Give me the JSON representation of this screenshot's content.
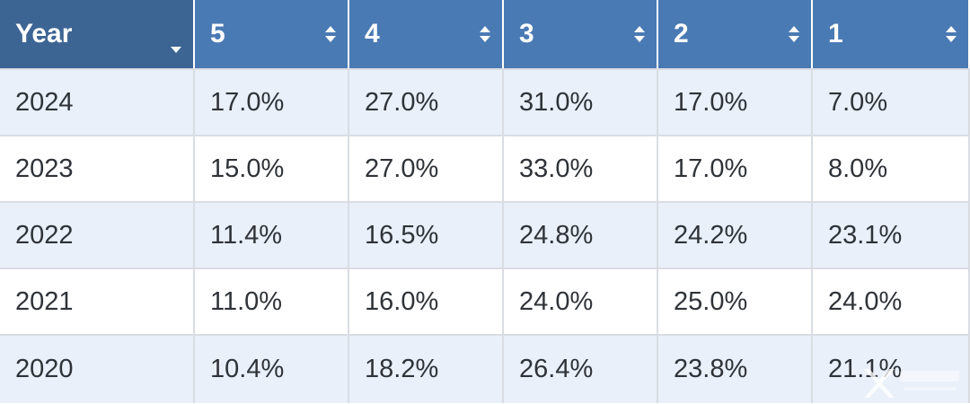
{
  "header": {
    "columns": [
      {
        "label": "Year",
        "control": "dropdown-icon"
      },
      {
        "label": "5",
        "control": "sort-icon"
      },
      {
        "label": "4",
        "control": "sort-icon"
      },
      {
        "label": "3",
        "control": "sort-icon"
      },
      {
        "label": "2",
        "control": "sort-icon"
      },
      {
        "label": "1",
        "control": "sort-icon"
      }
    ]
  },
  "rows": [
    {
      "year": "2024",
      "values": [
        "17.0%",
        "27.0%",
        "31.0%",
        "17.0%",
        "7.0%"
      ]
    },
    {
      "year": "2023",
      "values": [
        "15.0%",
        "27.0%",
        "33.0%",
        "17.0%",
        "8.0%"
      ]
    },
    {
      "year": "2022",
      "values": [
        "11.4%",
        "16.5%",
        "24.8%",
        "24.2%",
        "23.1%"
      ]
    },
    {
      "year": "2021",
      "values": [
        "11.0%",
        "16.0%",
        "24.0%",
        "25.0%",
        "24.0%"
      ]
    },
    {
      "year": "2020",
      "values": [
        "10.4%",
        "18.2%",
        "26.4%",
        "23.8%",
        "21.1%"
      ]
    }
  ],
  "colors": {
    "header": "#4a7ab4",
    "header_first": "#3d6594",
    "row_alt": "#e9f0fa",
    "row": "#ffffff",
    "text": "#2f3338"
  }
}
